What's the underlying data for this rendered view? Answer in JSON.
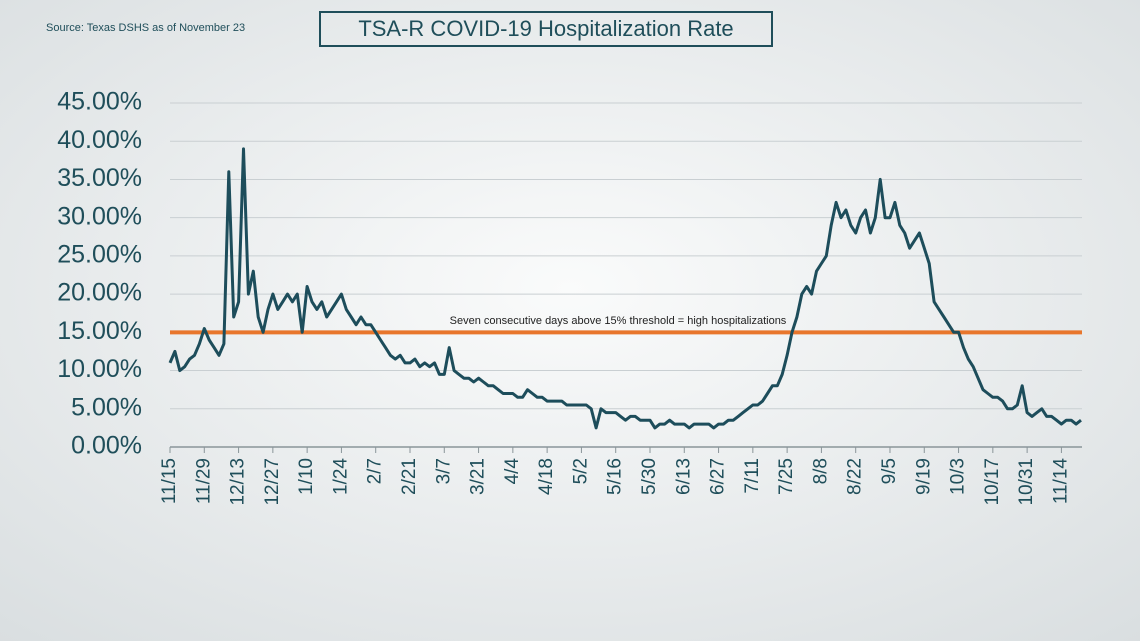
{
  "chart_data": {
    "type": "line",
    "title": "TSA-R COVID-19 Hospitalization Rate",
    "source": "Source: Texas DSHS  as of November 23",
    "annotation": "Seven consecutive days above 15% threshold = high hospitalizations",
    "threshold": 15,
    "threshold_color": "#e8762c",
    "grid": true,
    "ylim": [
      0,
      45
    ],
    "yticks": [
      {
        "value": 0,
        "label": "0.00%"
      },
      {
        "value": 5,
        "label": "5.00%"
      },
      {
        "value": 10,
        "label": "10.00%"
      },
      {
        "value": 15,
        "label": "15.00%"
      },
      {
        "value": 20,
        "label": "20.00%"
      },
      {
        "value": 25,
        "label": "25.00%"
      },
      {
        "value": 30,
        "label": "30.00%"
      },
      {
        "value": 35,
        "label": "35.00%"
      },
      {
        "value": 40,
        "label": "40.00%"
      },
      {
        "value": 45,
        "label": "45.00%"
      }
    ],
    "categories": [
      "11/15",
      null,
      null,
      null,
      null,
      null,
      null,
      "11/29",
      null,
      null,
      null,
      null,
      null,
      null,
      "12/13",
      null,
      null,
      null,
      null,
      null,
      null,
      "12/27",
      null,
      null,
      null,
      null,
      null,
      null,
      "1/10",
      null,
      null,
      null,
      null,
      null,
      null,
      "1/24",
      null,
      null,
      null,
      null,
      null,
      null,
      "2/7",
      null,
      null,
      null,
      null,
      null,
      null,
      "2/21",
      null,
      null,
      null,
      null,
      null,
      null,
      "3/7",
      null,
      null,
      null,
      null,
      null,
      null,
      "3/21",
      null,
      null,
      null,
      null,
      null,
      null,
      "4/4",
      null,
      null,
      null,
      null,
      null,
      null,
      "4/18",
      null,
      null,
      null,
      null,
      null,
      null,
      "5/2",
      null,
      null,
      null,
      null,
      null,
      null,
      "5/16",
      null,
      null,
      null,
      null,
      null,
      null,
      "5/30",
      null,
      null,
      null,
      null,
      null,
      null,
      "6/13",
      null,
      null,
      null,
      null,
      null,
      null,
      "6/27",
      null,
      null,
      null,
      null,
      null,
      null,
      "7/11",
      null,
      null,
      null,
      null,
      null,
      null,
      "7/25",
      null,
      null,
      null,
      null,
      null,
      null,
      "8/8",
      null,
      null,
      null,
      null,
      null,
      null,
      "8/22",
      null,
      null,
      null,
      null,
      null,
      null,
      "9/5",
      null,
      null,
      null,
      null,
      null,
      null,
      "9/19",
      null,
      null,
      null,
      null,
      null,
      null,
      "10/3",
      null,
      null,
      null,
      null,
      null,
      null,
      "10/17",
      null,
      null,
      null,
      null,
      null,
      null,
      "10/31",
      null,
      null,
      null,
      null,
      null,
      null,
      "11/14",
      null,
      null,
      null,
      null
    ],
    "series": [
      {
        "name": "Hospitalization rate",
        "color": "#1d4d5b",
        "values": [
          11,
          12.5,
          10,
          10.5,
          11.5,
          12,
          13.5,
          15.5,
          14,
          13,
          12,
          13.5,
          36,
          17,
          19,
          39,
          20,
          23,
          17,
          15,
          18,
          20,
          18,
          19,
          20,
          19,
          20,
          15,
          21,
          19,
          18,
          19,
          17,
          18,
          19,
          20,
          18,
          17,
          16,
          17,
          16,
          16,
          15,
          14,
          13,
          12,
          11.5,
          12,
          11,
          11,
          11.5,
          10.5,
          11,
          10.5,
          11,
          9.5,
          9.5,
          13,
          10,
          9.5,
          9,
          9,
          8.5,
          9,
          8.5,
          8,
          8,
          7.5,
          7,
          7,
          7,
          6.5,
          6.5,
          7.5,
          7,
          6.5,
          6.5,
          6,
          6,
          6,
          6,
          5.5,
          5.5,
          5.5,
          5.5,
          5.5,
          5,
          2.5,
          5,
          4.5,
          4.5,
          4.5,
          4,
          3.5,
          4,
          4,
          3.5,
          3.5,
          3.5,
          2.5,
          3,
          3,
          3.5,
          3,
          3,
          3,
          2.5,
          3,
          3,
          3,
          3,
          2.5,
          3,
          3,
          3.5,
          3.5,
          4,
          4.5,
          5,
          5.5,
          5.5,
          6,
          7,
          8,
          8,
          9.5,
          12,
          15,
          17,
          20,
          21,
          20,
          23,
          24,
          25,
          29,
          32,
          30,
          31,
          29,
          28,
          30,
          31,
          28,
          30,
          35,
          30,
          30,
          32,
          29,
          28,
          26,
          27,
          28,
          26,
          24,
          19,
          18,
          17,
          16,
          15,
          15,
          13,
          11.5,
          10.5,
          9,
          7.5,
          7,
          6.5,
          6.5,
          6,
          5,
          5,
          5.5,
          8,
          4.5,
          4,
          4.5,
          5,
          4,
          4,
          3.5,
          3,
          3.5,
          3.5,
          3,
          3.5
        ]
      }
    ]
  }
}
